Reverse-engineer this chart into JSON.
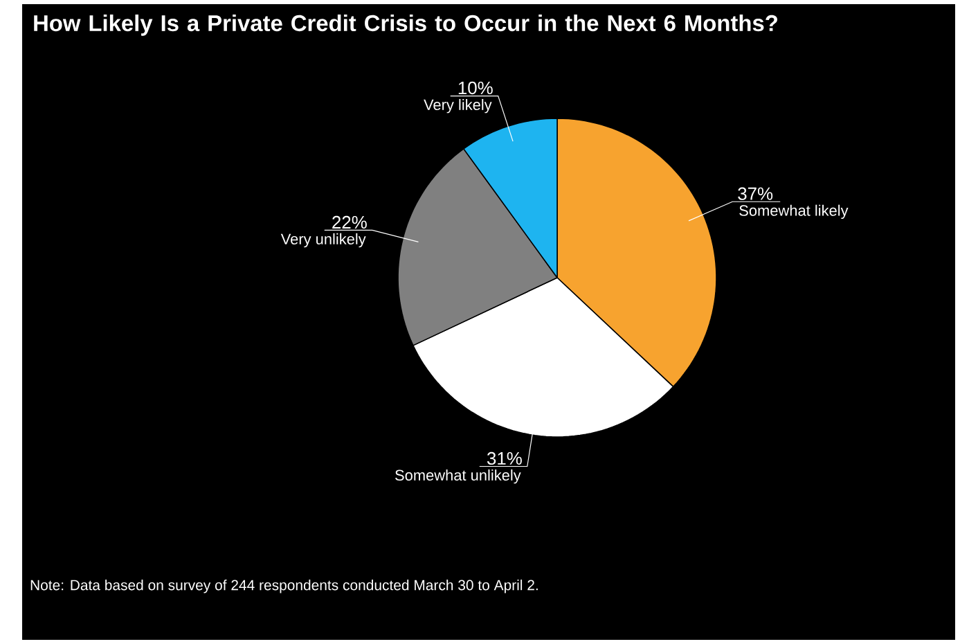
{
  "chart_data": {
    "type": "pie",
    "title": "How Likely Is a Private Credit Crisis to Occur in the Next 6 Months?",
    "categories": [
      "Somewhat likely",
      "Somewhat unlikely",
      "Very unlikely",
      "Very likely"
    ],
    "values": [
      37,
      31,
      22,
      10
    ],
    "value_labels": [
      "37%",
      "31%",
      "22%",
      "10%"
    ],
    "colors": [
      "#f7a32f",
      "#ffffff",
      "#808080",
      "#1eb4f0"
    ],
    "annotations": [
      "Note: Data based on survey of 244 respondents conducted March 30 to April 2."
    ]
  }
}
